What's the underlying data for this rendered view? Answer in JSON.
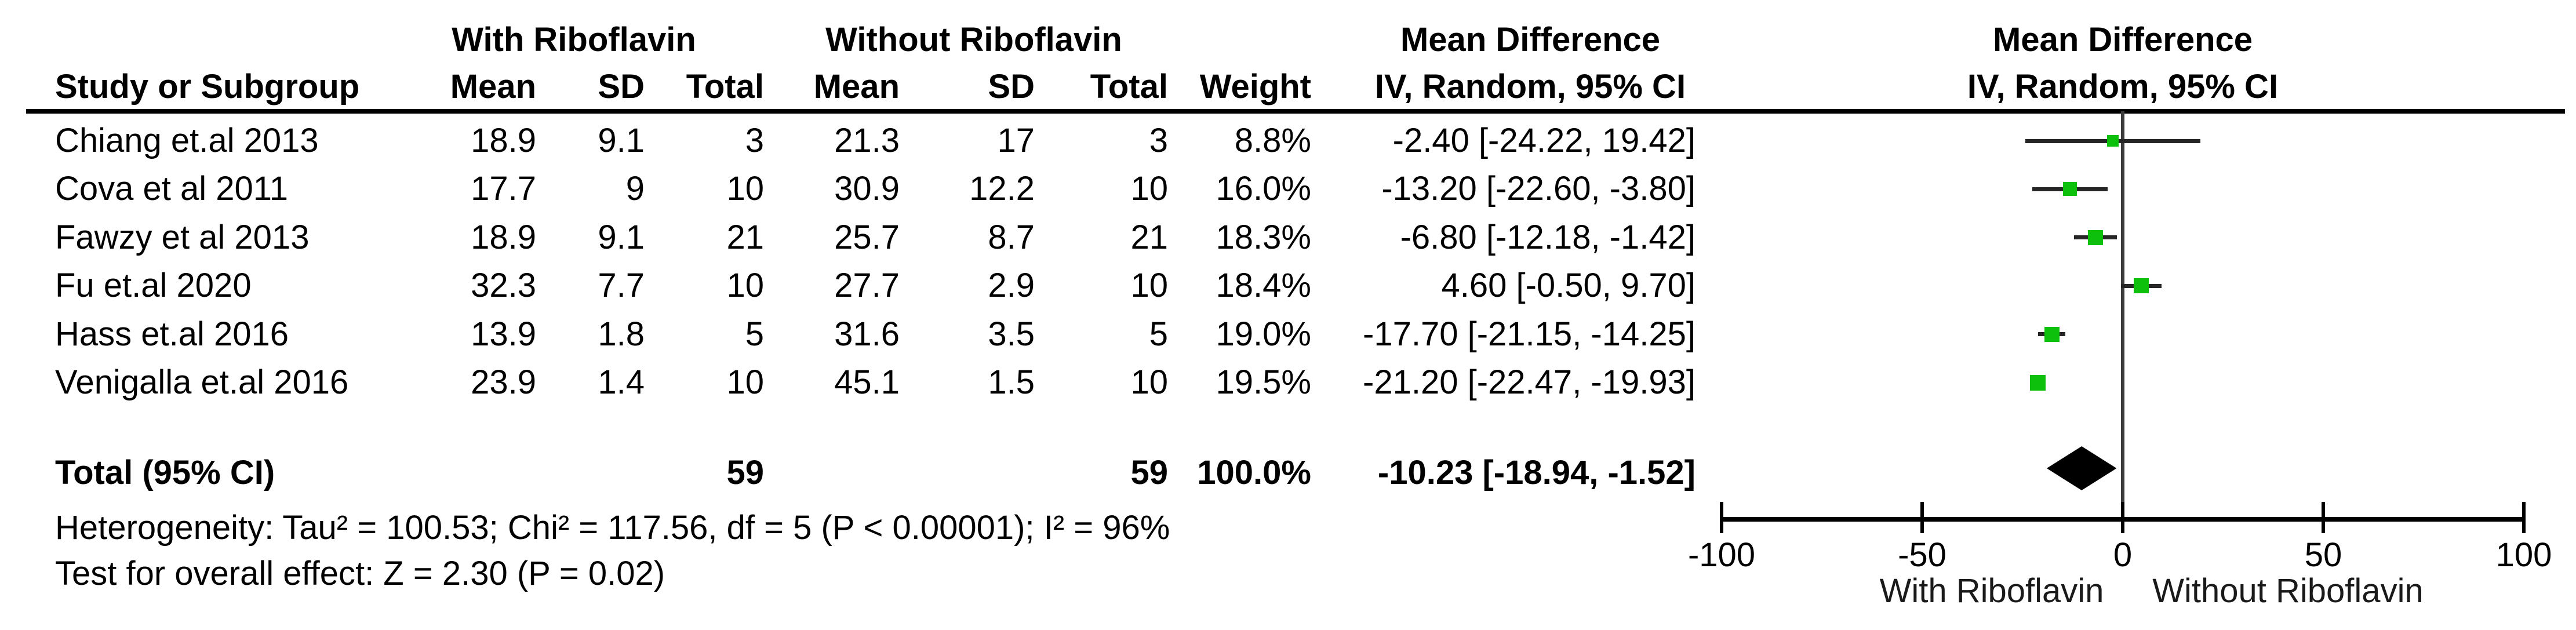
{
  "table": {
    "group1_header": "With Riboflavin",
    "group2_header": "Without Riboflavin",
    "col_study": "Study or Subgroup",
    "col_mean": "Mean",
    "col_sd": "SD",
    "col_total": "Total",
    "col_weight": "Weight",
    "md_header_line1": "Mean Difference",
    "md_header_line2": "IV, Random, 95% CI",
    "plot_header_line1": "Mean Difference",
    "plot_header_line2": "IV, Random, 95% CI",
    "total_row": {
      "label": "Total (95% CI)",
      "total1": "59",
      "total2": "59",
      "weight": "100.0%",
      "md_text": "-10.23 [-18.94, -1.52]"
    },
    "heterogeneity": "Heterogeneity: Tau² = 100.53; Chi² = 117.56, df = 5 (P < 0.00001); I² = 96%",
    "overall_effect": "Test for overall effect: Z = 2.30 (P = 0.02)"
  },
  "chart_data": {
    "type": "forest",
    "effect_measure": "Mean Difference, IV, Random, 95% CI",
    "studies": [
      {
        "study": "Chiang et.al 2013",
        "mean1": "18.9",
        "sd1": "9.1",
        "total1": "3",
        "mean2": "21.3",
        "sd2": "17",
        "total2": "3",
        "weight": "8.8%",
        "weight_pct": 8.8,
        "md_text": "-2.40 [-24.22, 19.42]",
        "md": -2.4,
        "ci_low": -24.22,
        "ci_high": 19.42
      },
      {
        "study": "Cova et al 2011",
        "mean1": "17.7",
        "sd1": "9",
        "total1": "10",
        "mean2": "30.9",
        "sd2": "12.2",
        "total2": "10",
        "weight": "16.0%",
        "weight_pct": 16.0,
        "md_text": "-13.20 [-22.60, -3.80]",
        "md": -13.2,
        "ci_low": -22.6,
        "ci_high": -3.8
      },
      {
        "study": "Fawzy et al 2013",
        "mean1": "18.9",
        "sd1": "9.1",
        "total1": "21",
        "mean2": "25.7",
        "sd2": "8.7",
        "total2": "21",
        "weight": "18.3%",
        "weight_pct": 18.3,
        "md_text": "-6.80 [-12.18, -1.42]",
        "md": -6.8,
        "ci_low": -12.18,
        "ci_high": -1.42
      },
      {
        "study": "Fu et.al 2020",
        "mean1": "32.3",
        "sd1": "7.7",
        "total1": "10",
        "mean2": "27.7",
        "sd2": "2.9",
        "total2": "10",
        "weight": "18.4%",
        "weight_pct": 18.4,
        "md_text": "4.60 [-0.50, 9.70]",
        "md": 4.6,
        "ci_low": -0.5,
        "ci_high": 9.7
      },
      {
        "study": "Hass et.al 2016",
        "mean1": "13.9",
        "sd1": "1.8",
        "total1": "5",
        "mean2": "31.6",
        "sd2": "3.5",
        "total2": "5",
        "weight": "19.0%",
        "weight_pct": 19.0,
        "md_text": "-17.70 [-21.15, -14.25]",
        "md": -17.7,
        "ci_low": -21.15,
        "ci_high": -14.25
      },
      {
        "study": "Venigalla et.al 2016",
        "mean1": "23.9",
        "sd1": "1.4",
        "total1": "10",
        "mean2": "45.1",
        "sd2": "1.5",
        "total2": "10",
        "weight": "19.5%",
        "weight_pct": 19.5,
        "md_text": "-21.20 [-22.47, -19.93]",
        "md": -21.2,
        "ci_low": -22.47,
        "ci_high": -19.93
      }
    ],
    "total": {
      "label": "Total (95% CI)",
      "md": -10.23,
      "ci_low": -18.94,
      "ci_high": -1.52,
      "total1": 59,
      "total2": 59,
      "weight_pct": 100.0
    },
    "axis": {
      "min": -100,
      "max": 100,
      "ticks": [
        -100,
        -50,
        0,
        50,
        100
      ],
      "tick_labels": [
        "-100",
        "-50",
        "0",
        "50",
        "100"
      ],
      "label_left": "With Riboflavin",
      "label_right": "Without Riboflavin"
    }
  },
  "colors": {
    "square_green": "#0cc00c",
    "ci_line": "#262626",
    "zero_line": "#3c3c3c",
    "axis": "#000000",
    "text": "#000000"
  }
}
